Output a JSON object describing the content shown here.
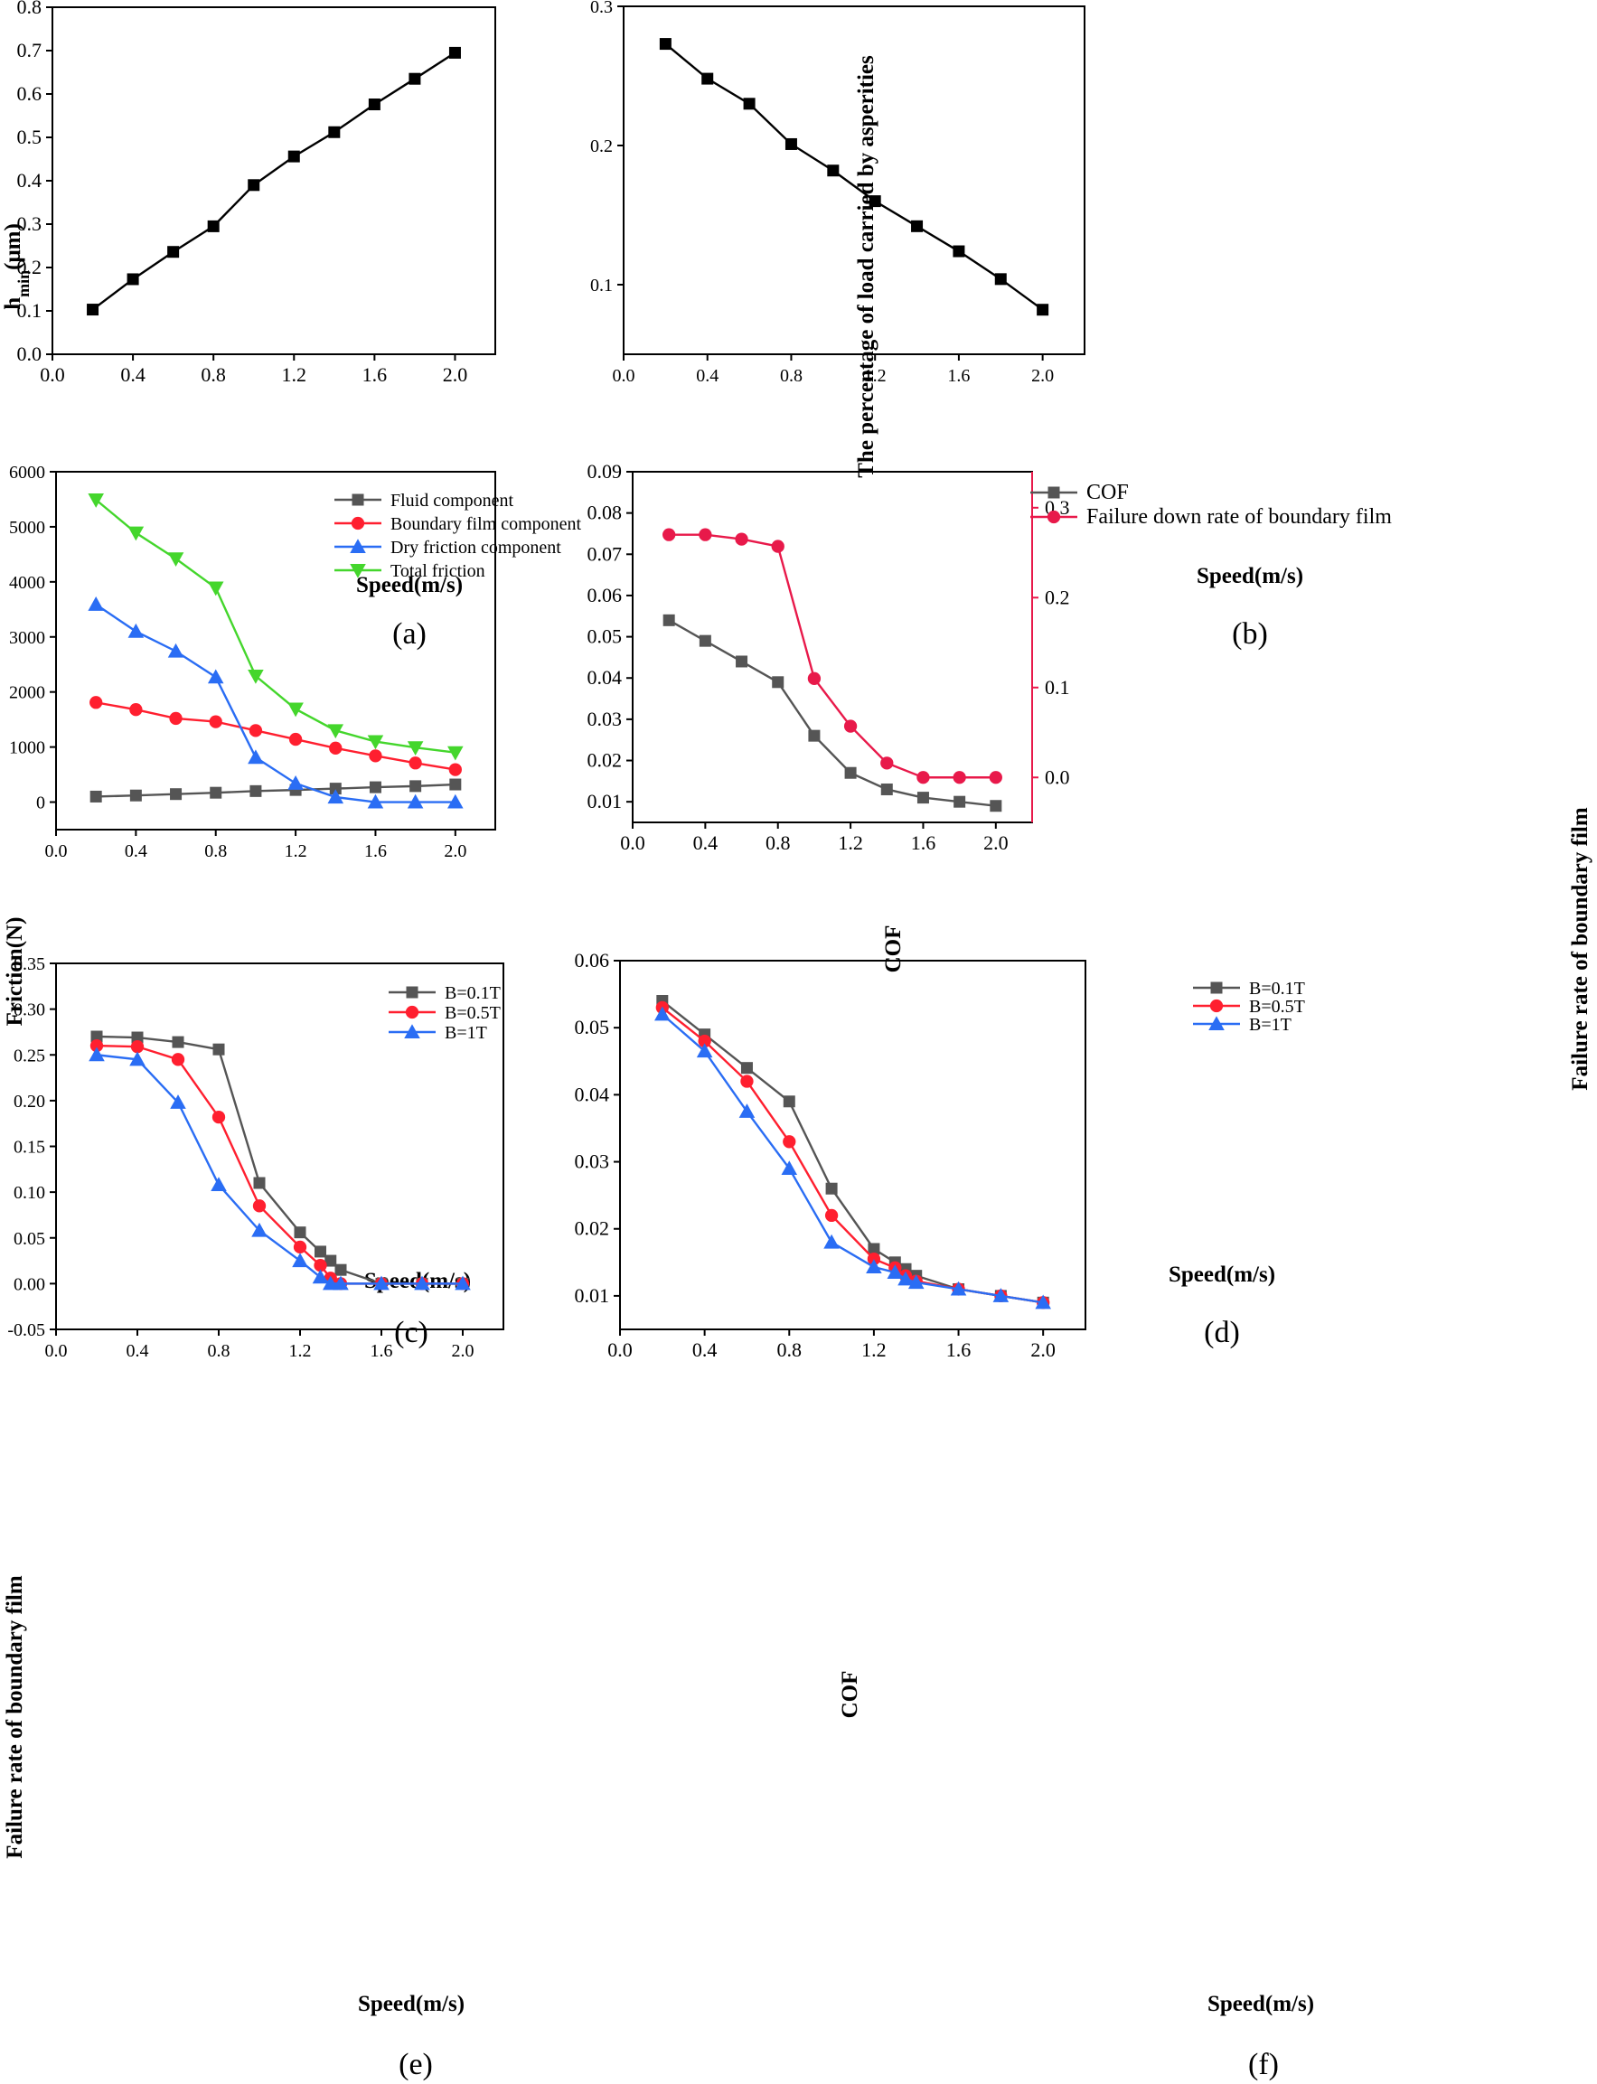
{
  "chart_data": [
    {
      "id": "a",
      "type": "line",
      "caption": "(a)",
      "title": "",
      "xlabel": "Speed(m/s)",
      "ylabel_main": "h",
      "ylabel_sub": "min",
      "ylabel_unit": "(μm)",
      "xlim": [
        0.0,
        2.2
      ],
      "ylim": [
        0.0,
        0.8
      ],
      "xticks": [
        0.0,
        0.4,
        0.8,
        1.2,
        1.6,
        2.0
      ],
      "xtick_labels": [
        "0.0",
        "0.4",
        "0.8",
        "1.2",
        "1.6",
        "2.0"
      ],
      "yticks": [
        0.0,
        0.1,
        0.2,
        0.3,
        0.4,
        0.5,
        0.6,
        0.7,
        0.8
      ],
      "ytick_labels": [
        "0.0",
        "0.1",
        "0.2",
        "0.3",
        "0.4",
        "0.5",
        "0.6",
        "0.7",
        "0.8"
      ],
      "x": [
        0.2,
        0.4,
        0.6,
        0.8,
        1.0,
        1.2,
        1.4,
        1.6,
        1.8,
        2.0
      ],
      "series": [
        {
          "name": "hmin",
          "color": "#000000",
          "marker": "square",
          "values": [
            0.103,
            0.173,
            0.236,
            0.295,
            0.39,
            0.456,
            0.512,
            0.576,
            0.635,
            0.695
          ]
        }
      ]
    },
    {
      "id": "b",
      "type": "line",
      "caption": "(b)",
      "title": "",
      "xlabel": "Speed(m/s)",
      "ylabel": "The percentage of load carried by asperities",
      "xlim": [
        0.0,
        2.2
      ],
      "ylim": [
        0.05,
        0.3
      ],
      "xticks": [
        0.0,
        0.4,
        0.8,
        1.2,
        1.6,
        2.0
      ],
      "xtick_labels": [
        "0.0",
        "0.4",
        "0.8",
        "1.2",
        "1.6",
        "2.0"
      ],
      "yticks": [
        0.1,
        0.2,
        0.3
      ],
      "ytick_labels": [
        "0.1",
        "0.2",
        "0.3"
      ],
      "x": [
        0.2,
        0.4,
        0.6,
        0.8,
        1.0,
        1.2,
        1.4,
        1.6,
        1.8,
        2.0
      ],
      "series": [
        {
          "name": "load percentage",
          "color": "#000000",
          "marker": "square",
          "values": [
            0.273,
            0.248,
            0.23,
            0.201,
            0.182,
            0.16,
            0.142,
            0.124,
            0.104,
            0.082
          ]
        }
      ]
    },
    {
      "id": "c",
      "type": "line",
      "caption": "(c)",
      "title": "",
      "xlabel": "Speed(m/s)",
      "ylabel": "Friction(N)",
      "xlim": [
        0.0,
        2.2
      ],
      "ylim": [
        -500,
        6000
      ],
      "xticks": [
        0.0,
        0.4,
        0.8,
        1.2,
        1.6,
        2.0
      ],
      "xtick_labels": [
        "0.0",
        "0.4",
        "0.8",
        "1.2",
        "1.6",
        "2.0"
      ],
      "yticks": [
        0,
        1000,
        2000,
        3000,
        4000,
        5000,
        6000
      ],
      "ytick_labels": [
        "0",
        "1000",
        "2000",
        "3000",
        "4000",
        "5000",
        "6000"
      ],
      "legend_position": "top-right",
      "x": [
        0.2,
        0.4,
        0.6,
        0.8,
        1.0,
        1.2,
        1.4,
        1.6,
        1.8,
        2.0
      ],
      "series": [
        {
          "name": "Fluid component",
          "color": "#555555",
          "marker": "square",
          "values": [
            100,
            120,
            145,
            170,
            200,
            220,
            245,
            270,
            290,
            320
          ]
        },
        {
          "name": "Boundary film component",
          "color": "#ff1f2f",
          "marker": "circle",
          "values": [
            1810,
            1680,
            1520,
            1460,
            1300,
            1140,
            980,
            840,
            710,
            590
          ]
        },
        {
          "name": "Dry friction component",
          "color": "#2a6df4",
          "marker": "triangle-up",
          "values": [
            3590,
            3100,
            2740,
            2270,
            810,
            340,
            90,
            0,
            0,
            0
          ]
        },
        {
          "name": "Total friction",
          "color": "#44d62c",
          "marker": "triangle-down",
          "values": [
            5490,
            4890,
            4420,
            3890,
            2290,
            1690,
            1300,
            1100,
            990,
            900
          ]
        }
      ]
    },
    {
      "id": "d",
      "type": "line",
      "caption": "(d)",
      "title": "",
      "xlabel": "Speed(m/s)",
      "ylabel": "COF",
      "ylabel_right": "Failure rate of boundary film",
      "xlim": [
        0.0,
        2.2
      ],
      "ylim": [
        0.005,
        0.09
      ],
      "ylim_right": [
        -0.05,
        0.34
      ],
      "xticks": [
        0.0,
        0.4,
        0.8,
        1.2,
        1.6,
        2.0
      ],
      "xtick_labels": [
        "0.0",
        "0.4",
        "0.8",
        "1.2",
        "1.6",
        "2.0"
      ],
      "yticks": [
        0.01,
        0.02,
        0.03,
        0.04,
        0.05,
        0.06,
        0.07,
        0.08,
        0.09
      ],
      "ytick_labels": [
        "0.01",
        "0.02",
        "0.03",
        "0.04",
        "0.05",
        "0.06",
        "0.07",
        "0.08",
        "0.09"
      ],
      "yticks_right": [
        0.0,
        0.1,
        0.2,
        0.3
      ],
      "ytick_labels_right": [
        "0.0",
        "0.1",
        "0.2",
        "0.3"
      ],
      "right_axis_color": "#e8194a",
      "legend_position": "top",
      "x": [
        0.2,
        0.4,
        0.6,
        0.8,
        1.0,
        1.2,
        1.4,
        1.6,
        1.8,
        2.0
      ],
      "series": [
        {
          "name": "COF",
          "axis": "left",
          "color": "#555555",
          "marker": "square",
          "values": [
            0.054,
            0.049,
            0.044,
            0.039,
            0.026,
            0.017,
            0.013,
            0.011,
            0.01,
            0.009
          ]
        },
        {
          "name": "Failure down rate of boundary film",
          "axis": "right",
          "color": "#e8194a",
          "marker": "circle",
          "values": [
            0.27,
            0.27,
            0.265,
            0.257,
            0.11,
            0.057,
            0.016,
            0.0,
            0.0,
            0.0
          ]
        }
      ]
    },
    {
      "id": "e",
      "type": "line",
      "caption": "(e)",
      "title": "",
      "xlabel": "Speed(m/s)",
      "ylabel": "Failure rate of boundary film",
      "xlim": [
        0.0,
        2.2
      ],
      "ylim": [
        -0.05,
        0.35
      ],
      "xticks": [
        0.0,
        0.4,
        0.8,
        1.2,
        1.6,
        2.0
      ],
      "xtick_labels": [
        "0.0",
        "0.4",
        "0.8",
        "1.2",
        "1.6",
        "2.0"
      ],
      "yticks": [
        -0.05,
        0.0,
        0.05,
        0.1,
        0.15,
        0.2,
        0.25,
        0.3,
        0.35
      ],
      "ytick_labels": [
        "-0.05",
        "0.00",
        "0.05",
        "0.10",
        "0.15",
        "0.20",
        "0.25",
        "0.30",
        "0.35"
      ],
      "legend_position": "top-right",
      "series": [
        {
          "name": "B=0.1T",
          "color": "#555555",
          "marker": "square",
          "x": [
            0.2,
            0.4,
            0.6,
            0.8,
            1.0,
            1.2,
            1.3,
            1.35,
            1.4,
            1.6,
            1.8,
            2.0
          ],
          "values": [
            0.27,
            0.269,
            0.264,
            0.256,
            0.11,
            0.056,
            0.035,
            0.025,
            0.015,
            0.0,
            0.0,
            0.0
          ]
        },
        {
          "name": "B=0.5T",
          "color": "#ff1f2f",
          "marker": "circle",
          "x": [
            0.2,
            0.4,
            0.6,
            0.8,
            1.0,
            1.2,
            1.3,
            1.35,
            1.4,
            1.6,
            1.8,
            2.0
          ],
          "values": [
            0.26,
            0.259,
            0.245,
            0.182,
            0.085,
            0.04,
            0.02,
            0.006,
            0.0,
            0.0,
            0.0,
            0.0
          ]
        },
        {
          "name": "B=1T",
          "color": "#2a6df4",
          "marker": "triangle-up",
          "x": [
            0.2,
            0.4,
            0.6,
            0.8,
            1.0,
            1.2,
            1.3,
            1.35,
            1.4,
            1.6,
            1.8,
            2.0
          ],
          "values": [
            0.25,
            0.245,
            0.198,
            0.108,
            0.058,
            0.025,
            0.007,
            0.0,
            0.0,
            0.0,
            0.0,
            0.0
          ]
        }
      ]
    },
    {
      "id": "f",
      "type": "line",
      "caption": "(f)",
      "title": "",
      "xlabel": "Speed(m/s)",
      "ylabel": "COF",
      "xlim": [
        0.0,
        2.2
      ],
      "ylim": [
        0.005,
        0.06
      ],
      "xticks": [
        0.0,
        0.4,
        0.8,
        1.2,
        1.6,
        2.0
      ],
      "xtick_labels": [
        "0.0",
        "0.4",
        "0.8",
        "1.2",
        "1.6",
        "2.0"
      ],
      "yticks": [
        0.01,
        0.02,
        0.03,
        0.04,
        0.05,
        0.06
      ],
      "ytick_labels": [
        "0.01",
        "0.02",
        "0.03",
        "0.04",
        "0.05",
        "0.06"
      ],
      "legend_position": "top-left",
      "series": [
        {
          "name": "B=0.1T",
          "color": "#555555",
          "marker": "square",
          "x": [
            0.2,
            0.4,
            0.6,
            0.8,
            1.0,
            1.2,
            1.3,
            1.35,
            1.4,
            1.6,
            1.8,
            2.0
          ],
          "values": [
            0.054,
            0.049,
            0.044,
            0.039,
            0.026,
            0.017,
            0.015,
            0.014,
            0.013,
            0.011,
            0.01,
            0.009
          ]
        },
        {
          "name": "B=0.5T",
          "color": "#ff1f2f",
          "marker": "circle",
          "x": [
            0.2,
            0.4,
            0.6,
            0.8,
            1.0,
            1.2,
            1.3,
            1.35,
            1.4,
            1.6,
            1.8,
            2.0
          ],
          "values": [
            0.053,
            0.048,
            0.042,
            0.033,
            0.022,
            0.0155,
            0.0142,
            0.013,
            0.0122,
            0.011,
            0.01,
            0.009
          ]
        },
        {
          "name": "B=1T",
          "color": "#2a6df4",
          "marker": "triangle-up",
          "x": [
            0.2,
            0.4,
            0.6,
            0.8,
            1.0,
            1.2,
            1.3,
            1.35,
            1.4,
            1.6,
            1.8,
            2.0
          ],
          "values": [
            0.052,
            0.0465,
            0.0375,
            0.029,
            0.018,
            0.0143,
            0.0135,
            0.0125,
            0.012,
            0.011,
            0.01,
            0.009
          ]
        }
      ]
    }
  ]
}
